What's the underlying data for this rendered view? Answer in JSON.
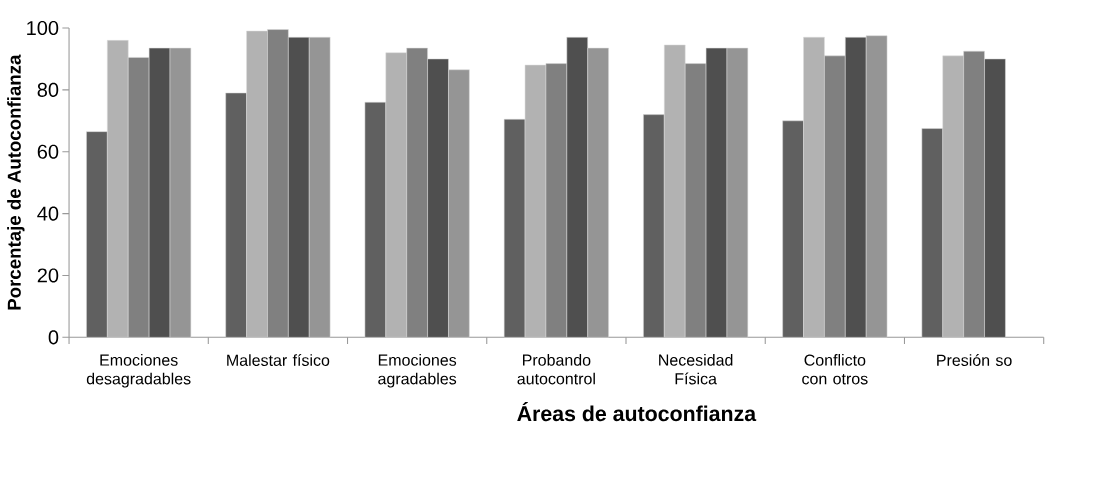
{
  "chart_data": {
    "type": "bar",
    "xlabel": "Áreas de autoconfianza",
    "ylabel": "Porcentaje de Autoconfianza",
    "categories": [
      "Emociones desagradables",
      "Malestar físico",
      "Emociones agradables",
      "Probando autocontrol",
      "Necesidad Física",
      "Conflicto con otros",
      "Presión so"
    ],
    "series": [
      {
        "color": "#606060",
        "values": [
          66.5,
          79,
          76,
          70.5,
          72,
          70,
          67.5
        ]
      },
      {
        "color": "#b2b2b2",
        "values": [
          96,
          99,
          92,
          88,
          94.5,
          97,
          91
        ]
      },
      {
        "color": "#808080",
        "values": [
          90.5,
          99.5,
          93.5,
          88.5,
          88.5,
          91,
          92.5
        ]
      },
      {
        "color": "#4f4f4f",
        "values": [
          93.5,
          97,
          90,
          97,
          93.5,
          97,
          90
        ]
      },
      {
        "color": "#959595",
        "values": [
          93.5,
          97,
          86.5,
          93.5,
          93.5,
          97.5,
          null
        ]
      }
    ],
    "ylim": [
      0,
      100
    ],
    "yticks": [
      0,
      20,
      40,
      60,
      80,
      100
    ]
  }
}
